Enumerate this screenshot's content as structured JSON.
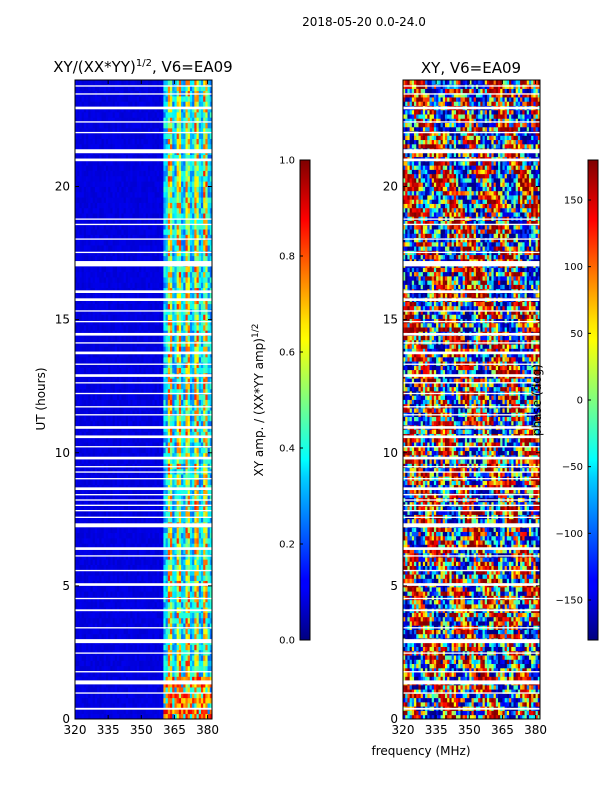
{
  "figure": {
    "suptitle": "2018-05-20 0.0-24.0",
    "xlabel_shared": "frequency (MHz)"
  },
  "chart_data": [
    {
      "type": "heatmap",
      "id": "amp",
      "title": "XY/(XX*YY)",
      "title_sup": "1/2",
      "title_suffix": ", V6=EA09",
      "ylabel": "UT (hours)",
      "xlim": [
        320,
        382
      ],
      "ylim": [
        0,
        24
      ],
      "xticks": [
        320,
        335,
        350,
        365,
        380
      ],
      "yticks": [
        0,
        5,
        10,
        15,
        20
      ],
      "colormap": "jet",
      "colorbar": {
        "label": "XY amp. / (XX*YY amp)",
        "label_sup": "1/2",
        "range": [
          0.0,
          1.0
        ],
        "ticks": [
          0.0,
          0.2,
          0.4,
          0.6,
          0.8,
          1.0
        ],
        "tick_labels": [
          "0.0",
          "0.2",
          "0.4",
          "0.6",
          "0.8",
          "1.0"
        ]
      },
      "features": {
        "low_value": 0.08,
        "active_band_mhz": [
          360,
          382
        ],
        "bright_channels_mhz": [
          363,
          367,
          371,
          375,
          379
        ],
        "bright_peak": 0.85
      }
    },
    {
      "type": "heatmap",
      "id": "phase",
      "title": "XY, V6=EA09",
      "xlim": [
        320,
        382
      ],
      "ylim": [
        0,
        24
      ],
      "xticks": [
        320,
        335,
        350,
        365,
        380
      ],
      "yticks": [
        0,
        5,
        10,
        15,
        20
      ],
      "colormap": "jet",
      "colorbar": {
        "label": "phase (deg)",
        "range": [
          -180,
          180
        ],
        "ticks": [
          -150,
          -100,
          -50,
          0,
          50,
          100,
          150
        ],
        "tick_labels": [
          "−150",
          "−100",
          "−50",
          "0",
          "50",
          "100",
          "150"
        ]
      }
    }
  ],
  "flagged_gaps_hours": [
    [
      0.35,
      0.42
    ],
    [
      0.95,
      1.0
    ],
    [
      1.3,
      1.45
    ],
    [
      1.75,
      1.8
    ],
    [
      2.45,
      2.5
    ],
    [
      2.85,
      3.0
    ],
    [
      3.4,
      3.45
    ],
    [
      4.05,
      4.12
    ],
    [
      4.5,
      4.55
    ],
    [
      5.0,
      5.1
    ],
    [
      5.55,
      5.6
    ],
    [
      6.1,
      6.15
    ],
    [
      6.35,
      6.45
    ],
    [
      7.2,
      7.35
    ],
    [
      7.55,
      7.6
    ],
    [
      7.8,
      7.85
    ],
    [
      8.0,
      8.05
    ],
    [
      8.2,
      8.25
    ],
    [
      8.4,
      8.45
    ],
    [
      8.6,
      8.7
    ],
    [
      9.0,
      9.05
    ],
    [
      9.25,
      9.3
    ],
    [
      9.45,
      9.5
    ],
    [
      9.75,
      9.85
    ],
    [
      10.2,
      10.25
    ],
    [
      10.55,
      10.65
    ],
    [
      10.9,
      11.0
    ],
    [
      11.4,
      11.45
    ],
    [
      11.7,
      11.75
    ],
    [
      12.2,
      12.25
    ],
    [
      12.6,
      12.65
    ],
    [
      12.85,
      12.95
    ],
    [
      13.3,
      13.35
    ],
    [
      13.7,
      13.8
    ],
    [
      14.1,
      14.15
    ],
    [
      14.4,
      14.5
    ],
    [
      14.9,
      14.95
    ],
    [
      15.3,
      15.35
    ],
    [
      15.7,
      15.8
    ],
    [
      16.0,
      16.1
    ],
    [
      17.0,
      17.2
    ],
    [
      17.5,
      17.55
    ],
    [
      18.0,
      18.05
    ],
    [
      18.55,
      18.6
    ],
    [
      18.75,
      18.8
    ],
    [
      20.95,
      21.05
    ],
    [
      21.25,
      21.4
    ],
    [
      22.0,
      22.05
    ],
    [
      22.4,
      22.45
    ],
    [
      22.9,
      23.0
    ],
    [
      23.45,
      23.5
    ],
    [
      23.75,
      23.8
    ]
  ]
}
